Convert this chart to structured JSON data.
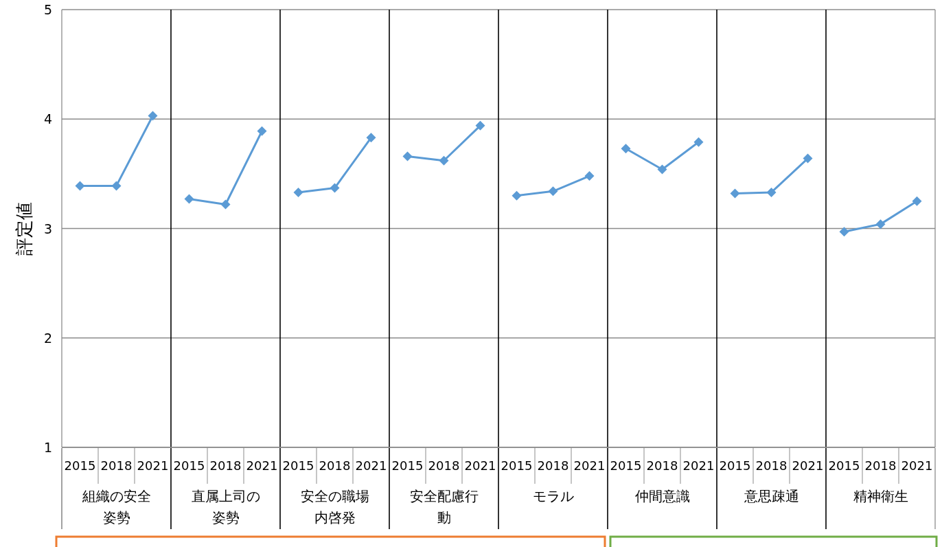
{
  "chart_data": [
    {
      "type": "line",
      "xlabel": "組織の安全姿勢",
      "ylabel": "評定値",
      "categories": [
        "2015",
        "2018",
        "2021"
      ],
      "series": [
        {
          "color": "#5b9bd5",
          "values": [
            3.39,
            3.39,
            4.03
          ]
        }
      ],
      "ylim": [
        1,
        5
      ],
      "yticks": [
        1,
        2,
        3,
        4,
        5
      ],
      "grid": "y",
      "marker": "diamond"
    },
    {
      "type": "line",
      "xlabel": "直属上司の姿勢",
      "categories": [
        "2015",
        "2018",
        "2021"
      ],
      "series": [
        {
          "color": "#5b9bd5",
          "values": [
            3.27,
            3.22,
            3.89
          ]
        }
      ],
      "ylim": [
        1,
        5
      ],
      "yticks": [
        1,
        2,
        3,
        4,
        5
      ],
      "grid": "y",
      "marker": "diamond",
      "tick_labels": "x"
    },
    {
      "type": "line",
      "xlabel": "安全の職場内啓発",
      "categories": [
        "2015",
        "2018",
        "2021"
      ],
      "series": [
        {
          "color": "#5b9bd5",
          "values": [
            3.33,
            3.37,
            3.83
          ]
        }
      ],
      "ylim": [
        1,
        5
      ],
      "yticks": [
        1,
        2,
        3,
        4,
        5
      ],
      "grid": "y",
      "marker": "diamond",
      "tick_labels": "x"
    },
    {
      "type": "line",
      "xlabel": "安全配慮行動",
      "categories": [
        "2015",
        "2018",
        "2021"
      ],
      "series": [
        {
          "color": "#5b9bd5",
          "values": [
            3.66,
            3.62,
            3.94
          ]
        }
      ],
      "ylim": [
        1,
        5
      ],
      "yticks": [
        1,
        2,
        3,
        4,
        5
      ],
      "grid": "y",
      "marker": "diamond",
      "tick_labels": "x"
    },
    {
      "type": "line",
      "xlabel": "モラル",
      "categories": [
        "2015",
        "2018",
        "2021"
      ],
      "series": [
        {
          "color": "#5b9bd5",
          "values": [
            3.3,
            3.34,
            3.48
          ]
        }
      ],
      "ylim": [
        1,
        5
      ],
      "yticks": [
        1,
        2,
        3,
        4,
        5
      ],
      "grid": "y",
      "marker": "diamond",
      "tick_labels": "x"
    },
    {
      "type": "line",
      "xlabel": "仲間意識",
      "categories": [
        "2015",
        "2018",
        "2021"
      ],
      "series": [
        {
          "color": "#5b9bd5",
          "values": [
            3.73,
            3.54,
            3.79
          ]
        }
      ],
      "ylim": [
        1,
        5
      ],
      "yticks": [
        1,
        2,
        3,
        4,
        5
      ],
      "grid": "y",
      "marker": "diamond",
      "tick_labels": "x"
    },
    {
      "type": "line",
      "xlabel": "意思疎通",
      "categories": [
        "2015",
        "2018",
        "2021"
      ],
      "series": [
        {
          "color": "#5b9bd5",
          "values": [
            3.32,
            3.33,
            3.64
          ]
        }
      ],
      "ylim": [
        1,
        5
      ],
      "yticks": [
        1,
        2,
        3,
        4,
        5
      ],
      "grid": "y",
      "marker": "diamond",
      "tick_labels": "x"
    },
    {
      "type": "line",
      "xlabel": "精神衛生",
      "categories": [
        "2015",
        "2018",
        "2021"
      ],
      "series": [
        {
          "color": "#5b9bd5",
          "values": [
            2.97,
            3.04,
            3.25
          ]
        }
      ],
      "ylim": [
        1,
        5
      ],
      "yticks": [
        1,
        2,
        3,
        4,
        5
      ],
      "grid": "y",
      "marker": "diamond",
      "tick_labels": "x"
    }
  ]
}
